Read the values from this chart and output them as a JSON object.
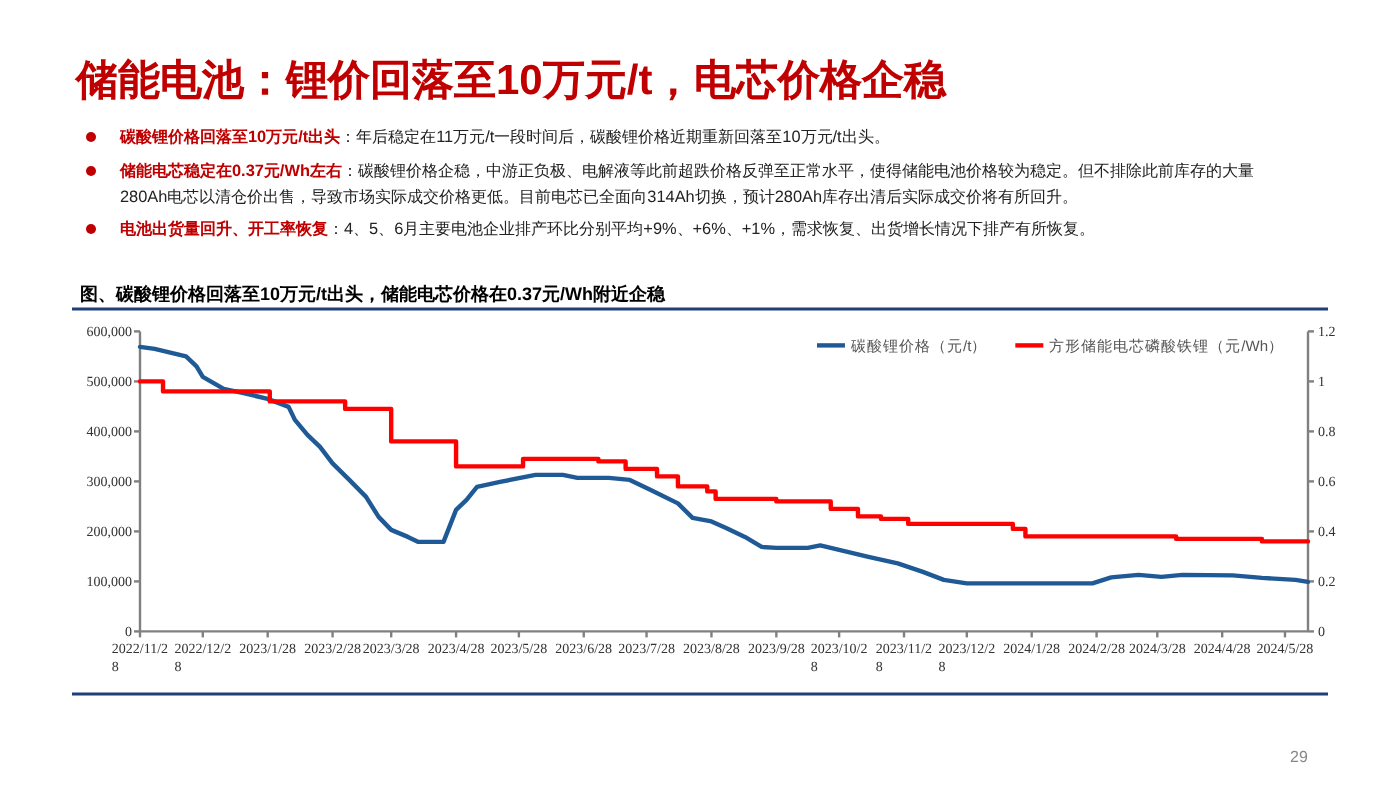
{
  "chart_data": {
    "type": "line",
    "title": "储能电池：锂价回落至10万元/t，电芯价格企稳",
    "subtitle": "图、碳酸锂价格回落至10万元/t出头，储能电芯价格在0.37元/Wh附近企稳",
    "annotations": [
      "碳酸锂价格回落至10万元/t出头：年后稳定在11万元/t一段时间后，碳酸锂价格近期重新回落至10万元/t出头。",
      "储能电芯稳定在0.37元/Wh左右：碳酸锂价格企稳，中游正负极、电解液等此前超跌价格反弹至正常水平，使得储能电池价格较为稳定。但不排除此前库存的大量280Ah电芯以清仓价出售，导致市场实际成交价格更低。目前电芯已全面向314Ah切换，预计280Ah库存出清后实际成交价将有所回升。",
      "电池出货量回升、开工率恢复：4、5、6月主要电池企业排产环比分别平均+9%、+6%、+1%，需求恢复、出货增长情况下排产有所恢复。",
      "29"
    ],
    "legend": "top right",
    "xlim": [
      "2022-11-28",
      "2024-06-08"
    ],
    "xticks": [
      {
        "value": "2022-11-28",
        "label": "2022/11/28"
      },
      {
        "value": "2022-12-28",
        "label": "2022/12/28"
      },
      {
        "value": "2023-01-28",
        "label": "2023/1/28"
      },
      {
        "value": "2023-02-28",
        "label": "2023/2/28"
      },
      {
        "value": "2023-03-28",
        "label": "2023/3/28"
      },
      {
        "value": "2023-04-28",
        "label": "2023/4/28"
      },
      {
        "value": "2023-05-28",
        "label": "2023/5/28"
      },
      {
        "value": "2023-06-28",
        "label": "2023/6/28"
      },
      {
        "value": "2023-07-28",
        "label": "2023/7/28"
      },
      {
        "value": "2023-08-28",
        "label": "2023/8/28"
      },
      {
        "value": "2023-09-28",
        "label": "2023/9/28"
      },
      {
        "value": "2023-10-28",
        "label": "2023/10/28"
      },
      {
        "value": "2023-11-28",
        "label": "2023/11/28"
      },
      {
        "value": "2023-12-28",
        "label": "2023/12/28"
      },
      {
        "value": "2024-01-28",
        "label": "2024/1/28"
      },
      {
        "value": "2024-02-28",
        "label": "2024/2/28"
      },
      {
        "value": "2024-03-28",
        "label": "2024/3/28"
      },
      {
        "value": "2024-04-28",
        "label": "2024/4/28"
      },
      {
        "value": "2024-05-28",
        "label": "2024/5/28"
      }
    ],
    "ylim": [
      0,
      600000
    ],
    "yticks": [
      {
        "value": 0,
        "label": "0"
      },
      {
        "value": 100000,
        "label": "100,000"
      },
      {
        "value": 200000,
        "label": "200,000"
      },
      {
        "value": 300000,
        "label": "300,000"
      },
      {
        "value": 400000,
        "label": "400,000"
      },
      {
        "value": 500000,
        "label": "500,000"
      },
      {
        "value": 600000,
        "label": "600,000"
      }
    ],
    "y2lim": [
      0,
      1.2
    ],
    "y2ticks": [
      0,
      0.2,
      0.4,
      0.6,
      0.8,
      1,
      1.2
    ],
    "series": [
      {
        "name": "碳酸锂价格（元/t）",
        "color": "#1f5a96",
        "type": "line",
        "x": [
          "2022-11-28",
          "2022-12-05",
          "2022-12-20",
          "2022-12-25",
          "2022-12-28",
          "2023-01-07",
          "2023-01-17",
          "2023-01-28",
          "2023-02-07",
          "2023-02-10",
          "2023-02-16",
          "2023-02-22",
          "2023-02-28",
          "2023-03-08",
          "2023-03-16",
          "2023-03-22",
          "2023-03-28",
          "2023-04-05",
          "2023-04-10",
          "2023-04-22",
          "2023-04-28",
          "2023-05-03",
          "2023-05-08",
          "2023-05-19",
          "2023-06-05",
          "2023-06-18",
          "2023-06-25",
          "2023-07-10",
          "2023-07-20",
          "2023-07-30",
          "2023-08-12",
          "2023-08-19",
          "2023-08-28",
          "2023-09-04",
          "2023-09-13",
          "2023-09-21",
          "2023-09-28",
          "2023-10-13",
          "2023-10-19",
          "2023-10-28",
          "2023-11-11",
          "2023-11-25",
          "2023-12-07",
          "2023-12-17",
          "2023-12-28",
          "2024-01-29",
          "2024-02-26",
          "2024-03-06",
          "2024-03-19",
          "2024-03-30",
          "2024-04-09",
          "2024-05-03",
          "2024-05-17",
          "2024-06-02",
          "2024-06-08"
        ],
        "values": [
          569000,
          565000,
          550000,
          530000,
          509000,
          485000,
          476000,
          465000,
          449000,
          423000,
          393000,
          369000,
          336000,
          303000,
          269000,
          229000,
          203000,
          189000,
          179000,
          179000,
          243000,
          263000,
          289000,
          299000,
          313000,
          313000,
          307000,
          307000,
          303000,
          283000,
          256000,
          227000,
          220000,
          207000,
          189000,
          169000,
          167000,
          167000,
          172000,
          163000,
          149000,
          136000,
          119000,
          103000,
          96000,
          96000,
          96000,
          108000,
          113000,
          109000,
          113000,
          112000,
          107000,
          103000,
          99000
        ]
      },
      {
        "name": "方形储能电芯磷酸铁锂（元/Wh）",
        "color": "#ff0000",
        "type": "step",
        "axis": "y2",
        "x": [
          "2022-11-28",
          "2022-12-09",
          "2023-01-29",
          "2023-03-06",
          "2023-03-28",
          "2023-04-28",
          "2023-05-30",
          "2023-07-05",
          "2023-07-18",
          "2023-08-02",
          "2023-08-12",
          "2023-08-26",
          "2023-08-30",
          "2023-09-28",
          "2023-10-19",
          "2023-10-24",
          "2023-11-06",
          "2023-11-17",
          "2023-11-30",
          "2024-01-19",
          "2024-01-25",
          "2024-04-06",
          "2024-05-17",
          "2024-06-08"
        ],
        "values": [
          1.0,
          0.96,
          0.92,
          0.89,
          0.76,
          0.66,
          0.69,
          0.68,
          0.65,
          0.62,
          0.58,
          0.56,
          0.53,
          0.52,
          0.52,
          0.49,
          0.46,
          0.45,
          0.43,
          0.41,
          0.38,
          0.37,
          0.36,
          0.36
        ]
      }
    ]
  }
}
